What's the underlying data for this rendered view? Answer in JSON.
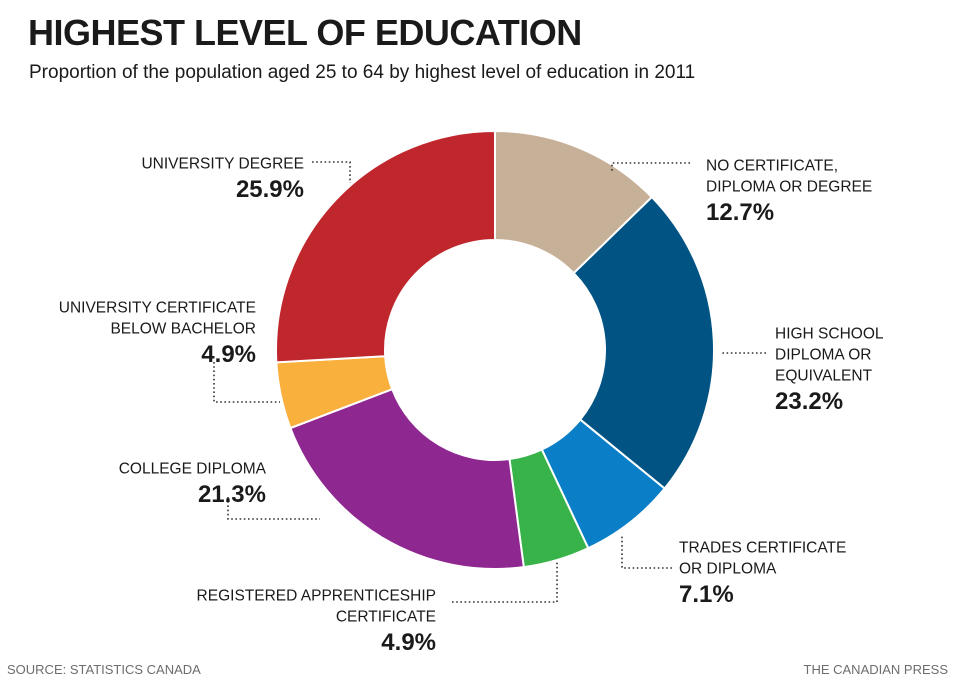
{
  "header": {
    "title": "HIGHEST LEVEL OF EDUCATION",
    "subtitle": "Proportion of the population aged 25 to 64 by highest level of education in 2011"
  },
  "footer": {
    "source": "SOURCE: STATISTICS CANADA",
    "credit": "THE CANADIAN PRESS"
  },
  "chart_data": {
    "type": "pie",
    "donut": true,
    "title": "HIGHEST LEVEL OF EDUCATION",
    "subtitle": "Proportion of the population aged 25 to 64 by highest level of education in 2011",
    "unit": "%",
    "slices": [
      {
        "label_lines": [
          "NO CERTIFICATE,",
          "DIPLOMA OR DEGREE"
        ],
        "value": 12.7,
        "value_label": "12.7%",
        "color": "#c6b098"
      },
      {
        "label_lines": [
          "HIGH SCHOOL",
          "DIPLOMA OR",
          "EQUIVALENT"
        ],
        "value": 23.2,
        "value_label": "23.2%",
        "color": "#005383"
      },
      {
        "label_lines": [
          "TRADES CERTIFICATE",
          "OR DIPLOMA"
        ],
        "value": 7.1,
        "value_label": "7.1%",
        "color": "#0a7fc8"
      },
      {
        "label_lines": [
          "REGISTERED APPRENTICESHIP",
          "CERTIFICATE"
        ],
        "value": 4.9,
        "value_label": "4.9%",
        "color": "#37b34a"
      },
      {
        "label_lines": [
          "COLLEGE DIPLOMA"
        ],
        "value": 21.3,
        "value_label": "21.3%",
        "color": "#8e2790"
      },
      {
        "label_lines": [
          "UNIVERSITY CERTIFICATE",
          "BELOW BACHELOR"
        ],
        "value": 4.9,
        "value_label": "4.9%",
        "color": "#f9b03c"
      },
      {
        "label_lines": [
          "UNIVERSITY DEGREE"
        ],
        "value": 25.9,
        "value_label": "25.9%",
        "color": "#c0272d"
      }
    ]
  }
}
